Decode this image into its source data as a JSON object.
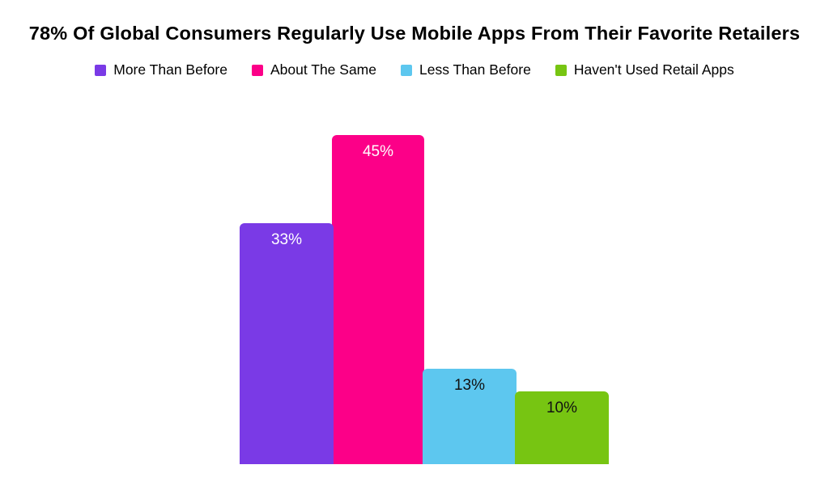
{
  "title": "78% Of Global Consumers Regularly Use Mobile Apps From Their Favorite Retailers",
  "legend": {
    "items": [
      {
        "label": "More Than Before",
        "color": "#7A3AE6"
      },
      {
        "label": "About The Same",
        "color": "#FC0088"
      },
      {
        "label": "Less Than Before",
        "color": "#5DC7EF"
      },
      {
        "label": "Haven't Used Retail Apps",
        "color": "#77C512"
      }
    ]
  },
  "chart_data": {
    "type": "bar",
    "title": "78% Of Global Consumers Regularly Use Mobile Apps From Their Favorite Retailers",
    "categories": [
      "More Than Before",
      "About The Same",
      "Less Than Before",
      "Haven't Used Retail Apps"
    ],
    "values": [
      33,
      45,
      13,
      10
    ],
    "value_labels": [
      "33%",
      "45%",
      "13%",
      "10%"
    ],
    "bar_colors": [
      "#7A3AE6",
      "#FC0088",
      "#5DC7EF",
      "#77C512"
    ],
    "value_label_colors": [
      "#ffffff",
      "#ffffff",
      "#111111",
      "#111111"
    ],
    "unit": "percent",
    "ylim": [
      0,
      50
    ],
    "grid": false,
    "axes": "hidden",
    "legend_position": "top"
  }
}
